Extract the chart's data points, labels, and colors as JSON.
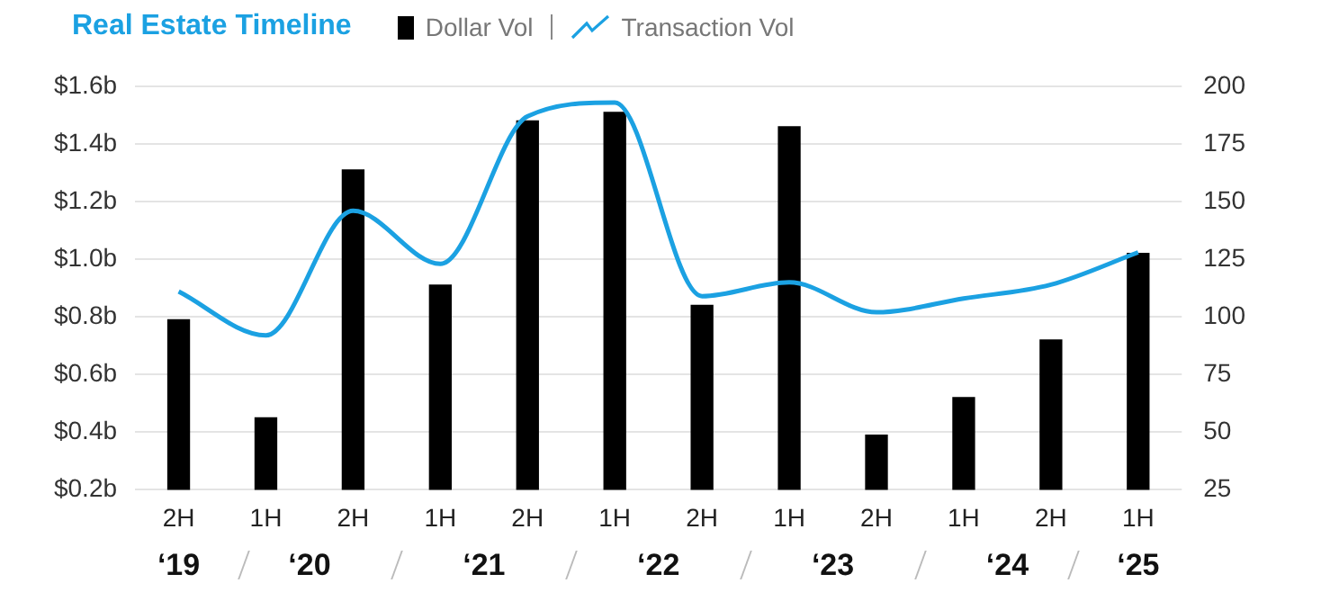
{
  "chart_data": {
    "type": "bar",
    "title": "Real Estate Timeline",
    "legend": "top",
    "categories": [
      "2H",
      "1H",
      "2H",
      "1H",
      "2H",
      "1H",
      "2H",
      "1H",
      "2H",
      "1H",
      "2H",
      "1H"
    ],
    "series": [
      {
        "name": "Dollar Vol",
        "color": "#000000",
        "values": [
          0.79,
          0.45,
          1.31,
          0.91,
          1.48,
          1.51,
          0.84,
          1.46,
          0.39,
          0.52,
          0.72,
          1.02
        ]
      },
      {
        "name": "Transaction Vol",
        "type": "line",
        "axis": "y2",
        "color": "#1ba1e2",
        "marker": "none",
        "values": [
          111,
          92,
          146,
          123,
          187,
          193,
          109,
          115,
          102,
          108,
          114,
          128
        ]
      }
    ],
    "ylim": [
      0.2,
      1.6
    ],
    "yticks": [
      {
        "value": 0.2,
        "label": "$0.2b"
      },
      {
        "value": 0.4,
        "label": "$0.4b"
      },
      {
        "value": 0.6,
        "label": "$0.6b"
      },
      {
        "value": 0.8,
        "label": "$0.8b"
      },
      {
        "value": 1.0,
        "label": "$1.0b"
      },
      {
        "value": 1.2,
        "label": "$1.2b"
      },
      {
        "value": 1.4,
        "label": "$1.4b"
      },
      {
        "value": 1.6,
        "label": "$1.6b"
      }
    ],
    "y2lim": [
      25,
      200
    ],
    "y2ticks": [
      25,
      50,
      75,
      100,
      125,
      150,
      175,
      200
    ],
    "grid": "y",
    "annotations": [
      "‘19",
      "‘20",
      "‘21",
      "‘22",
      "‘23",
      "‘24",
      "‘25"
    ]
  }
}
